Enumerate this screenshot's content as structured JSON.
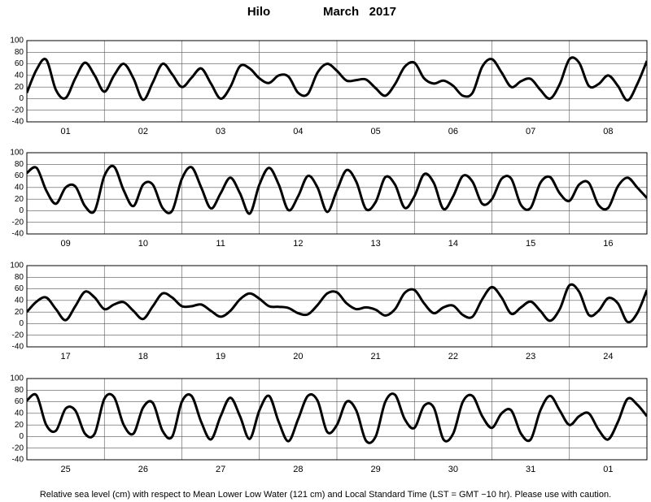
{
  "title": "Hilo",
  "date": "March   2017",
  "footnote": "Relative sea level (cm) with respect to Mean Lower Low Water (121 cm) and Local Standard Time (LST = GMT −10 hr).  Please use with caution.",
  "chart_data": [
    {
      "type": "line",
      "color": "#000000",
      "grid": true,
      "ylim": [
        -40,
        100
      ],
      "yticks": [
        -40,
        -20,
        0,
        20,
        40,
        60,
        80,
        100
      ],
      "categories": [
        null,
        null,
        null,
        null,
        "01",
        null,
        null,
        null,
        null,
        null,
        null,
        null,
        "02",
        null,
        null,
        null,
        null,
        null,
        null,
        null,
        "03",
        null,
        null,
        null,
        null,
        null,
        null,
        null,
        "04",
        null,
        null,
        null,
        null,
        null,
        null,
        null,
        "05",
        null,
        null,
        null,
        null,
        null,
        null,
        null,
        "06",
        null,
        null,
        null,
        null,
        null,
        null,
        null,
        "07",
        null,
        null,
        null,
        null,
        null,
        null,
        null,
        "08",
        null,
        null,
        null,
        null
      ],
      "values": [
        10,
        50,
        67,
        15,
        1,
        35,
        62,
        40,
        12,
        40,
        60,
        35,
        -2,
        28,
        60,
        42,
        20,
        36,
        52,
        26,
        0,
        20,
        56,
        52,
        35,
        27,
        40,
        38,
        10,
        8,
        45,
        60,
        48,
        31,
        32,
        33,
        18,
        5,
        25,
        55,
        62,
        35,
        26,
        31,
        22,
        5,
        10,
        55,
        68,
        45,
        20,
        30,
        34,
        15,
        0,
        25,
        68,
        62,
        22,
        25,
        40,
        22,
        -3,
        25,
        65
      ]
    },
    {
      "type": "line",
      "color": "#000000",
      "grid": true,
      "ylim": [
        -40,
        100
      ],
      "yticks": [
        -40,
        -20,
        0,
        20,
        40,
        60,
        80,
        100
      ],
      "categories": [
        null,
        null,
        null,
        null,
        "09",
        null,
        null,
        null,
        null,
        null,
        null,
        null,
        "10",
        null,
        null,
        null,
        null,
        null,
        null,
        null,
        "11",
        null,
        null,
        null,
        null,
        null,
        null,
        null,
        "12",
        null,
        null,
        null,
        null,
        null,
        null,
        null,
        "13",
        null,
        null,
        null,
        null,
        null,
        null,
        null,
        "14",
        null,
        null,
        null,
        null,
        null,
        null,
        null,
        "15",
        null,
        null,
        null,
        null,
        null,
        null,
        null,
        "16",
        null,
        null,
        null,
        null
      ],
      "values": [
        65,
        74,
        35,
        12,
        40,
        42,
        8,
        0,
        60,
        76,
        35,
        8,
        45,
        45,
        5,
        0,
        55,
        75,
        40,
        4,
        30,
        57,
        30,
        -5,
        45,
        74,
        45,
        1,
        25,
        60,
        40,
        -2,
        35,
        70,
        50,
        3,
        15,
        58,
        45,
        5,
        25,
        63,
        48,
        3,
        25,
        60,
        50,
        12,
        20,
        55,
        55,
        10,
        5,
        48,
        58,
        30,
        17,
        45,
        48,
        10,
        5,
        42,
        57,
        40,
        22
      ]
    },
    {
      "type": "line",
      "color": "#000000",
      "grid": true,
      "ylim": [
        -40,
        100
      ],
      "yticks": [
        -40,
        -20,
        0,
        20,
        40,
        60,
        80,
        100
      ],
      "categories": [
        null,
        null,
        null,
        null,
        "17",
        null,
        null,
        null,
        null,
        null,
        null,
        null,
        "18",
        null,
        null,
        null,
        null,
        null,
        null,
        null,
        "19",
        null,
        null,
        null,
        null,
        null,
        null,
        null,
        "20",
        null,
        null,
        null,
        null,
        null,
        null,
        null,
        "21",
        null,
        null,
        null,
        null,
        null,
        null,
        null,
        "22",
        null,
        null,
        null,
        null,
        null,
        null,
        null,
        "23",
        null,
        null,
        null,
        null,
        null,
        null,
        null,
        "24",
        null,
        null,
        null,
        null
      ],
      "values": [
        20,
        38,
        45,
        25,
        6,
        30,
        55,
        45,
        25,
        33,
        37,
        22,
        8,
        30,
        52,
        45,
        30,
        30,
        33,
        22,
        12,
        22,
        42,
        52,
        43,
        30,
        29,
        27,
        18,
        16,
        32,
        52,
        54,
        35,
        25,
        28,
        24,
        14,
        25,
        53,
        58,
        35,
        18,
        28,
        31,
        15,
        12,
        42,
        63,
        45,
        17,
        28,
        38,
        22,
        5,
        25,
        66,
        55,
        15,
        22,
        44,
        35,
        3,
        18,
        58
      ]
    },
    {
      "type": "line",
      "color": "#000000",
      "grid": true,
      "ylim": [
        -40,
        100
      ],
      "yticks": [
        -40,
        -20,
        0,
        20,
        40,
        60,
        80,
        100
      ],
      "categories": [
        null,
        null,
        null,
        null,
        "25",
        null,
        null,
        null,
        null,
        null,
        null,
        null,
        "26",
        null,
        null,
        null,
        null,
        null,
        null,
        null,
        "27",
        null,
        null,
        null,
        null,
        null,
        null,
        null,
        "28",
        null,
        null,
        null,
        null,
        null,
        null,
        null,
        "29",
        null,
        null,
        null,
        null,
        null,
        null,
        null,
        "30",
        null,
        null,
        null,
        null,
        null,
        null,
        null,
        "31",
        null,
        null,
        null,
        null,
        null,
        null,
        null,
        "01",
        null,
        null,
        null,
        null
      ],
      "values": [
        62,
        71,
        20,
        10,
        48,
        45,
        5,
        5,
        65,
        68,
        20,
        5,
        50,
        58,
        10,
        0,
        60,
        70,
        25,
        -5,
        35,
        67,
        35,
        -4,
        45,
        70,
        25,
        -8,
        30,
        70,
        62,
        8,
        20,
        60,
        45,
        -7,
        0,
        60,
        72,
        30,
        15,
        53,
        50,
        -5,
        5,
        60,
        70,
        35,
        15,
        40,
        45,
        5,
        -5,
        45,
        70,
        45,
        20,
        35,
        40,
        12,
        -5,
        25,
        65,
        55,
        35
      ]
    }
  ]
}
